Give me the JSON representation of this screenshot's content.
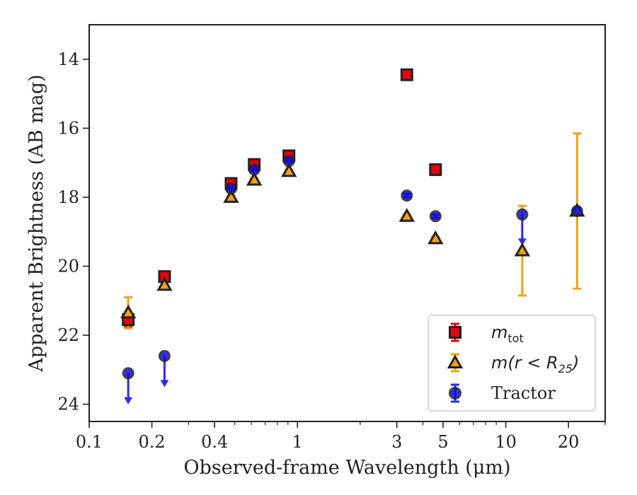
{
  "chart_data": {
    "type": "scatter",
    "xlabel": "Observed-frame Wavelength (μm)",
    "ylabel": "Apparent Brightness (AB mag)",
    "xscale": "log",
    "xlim": [
      0.1,
      30
    ],
    "ylim": [
      24.5,
      13
    ],
    "y_inverted": true,
    "x_ticks": [
      {
        "value": 0.1,
        "label": "0.1"
      },
      {
        "value": 0.2,
        "label": "0.2"
      },
      {
        "value": 0.4,
        "label": "0.4"
      },
      {
        "value": 1,
        "label": "1"
      },
      {
        "value": 3,
        "label": "3"
      },
      {
        "value": 5,
        "label": "5"
      },
      {
        "value": 10,
        "label": "10"
      },
      {
        "value": 20,
        "label": "20"
      }
    ],
    "y_ticks": [
      14,
      16,
      18,
      20,
      22,
      24
    ],
    "legend_position": "lower-right",
    "series": [
      {
        "name": "m_tot",
        "legend_label": {
          "base": "m",
          "sub": "tot"
        },
        "marker": "square",
        "color": "#e8000b",
        "errcolor": "#e8000b",
        "points": [
          {
            "x": 0.154,
            "y": 21.55,
            "err": 0.2
          },
          {
            "x": 0.23,
            "y": 20.3,
            "err": 0.05
          },
          {
            "x": 0.48,
            "y": 17.6,
            "err": 0.05
          },
          {
            "x": 0.62,
            "y": 17.05,
            "err": 0.05
          },
          {
            "x": 0.91,
            "y": 16.8,
            "err": 0.05
          },
          {
            "x": 3.35,
            "y": 14.45,
            "err": 0.05
          },
          {
            "x": 4.6,
            "y": 17.2,
            "err": 0.05
          }
        ]
      },
      {
        "name": "m(r < R25)",
        "legend_label": {
          "base": "m(r < R",
          "sub": "25",
          "tail": ")"
        },
        "marker": "triangle",
        "color": "#f5a10f",
        "errcolor": "#f5a10f",
        "points": [
          {
            "x": 0.154,
            "y": 21.35,
            "err": 0.45
          },
          {
            "x": 0.23,
            "y": 20.55,
            "err": 0.05
          },
          {
            "x": 0.48,
            "y": 18.0,
            "err": 0.05
          },
          {
            "x": 0.62,
            "y": 17.5,
            "err": 0.05
          },
          {
            "x": 0.91,
            "y": 17.25,
            "err": 0.05
          },
          {
            "x": 3.35,
            "y": 18.55,
            "err": 0.05
          },
          {
            "x": 4.6,
            "y": 19.2,
            "err": 0.05
          },
          {
            "x": 12.0,
            "y": 19.55,
            "err": 1.3
          },
          {
            "x": 22.0,
            "y": 18.4,
            "err": 2.25
          }
        ]
      },
      {
        "name": "Tractor",
        "legend_label": {
          "base": "Tractor"
        },
        "marker": "circle",
        "color": "#0a0af0",
        "errcolor": "#2b2bea",
        "points": [
          {
            "x": 0.154,
            "y": 23.1,
            "upper_limit": true
          },
          {
            "x": 0.23,
            "y": 22.6,
            "upper_limit": true
          },
          {
            "x": 0.48,
            "y": 17.75,
            "err": 0.05
          },
          {
            "x": 0.62,
            "y": 17.2,
            "err": 0.05
          },
          {
            "x": 0.91,
            "y": 16.95,
            "err": 0.05
          },
          {
            "x": 3.35,
            "y": 17.95,
            "err": 0.05
          },
          {
            "x": 4.6,
            "y": 18.55,
            "err": 0.05
          },
          {
            "x": 12.0,
            "y": 18.5,
            "upper_limit": true
          },
          {
            "x": 22.0,
            "y": 18.4,
            "err": 0.05
          }
        ]
      }
    ]
  }
}
